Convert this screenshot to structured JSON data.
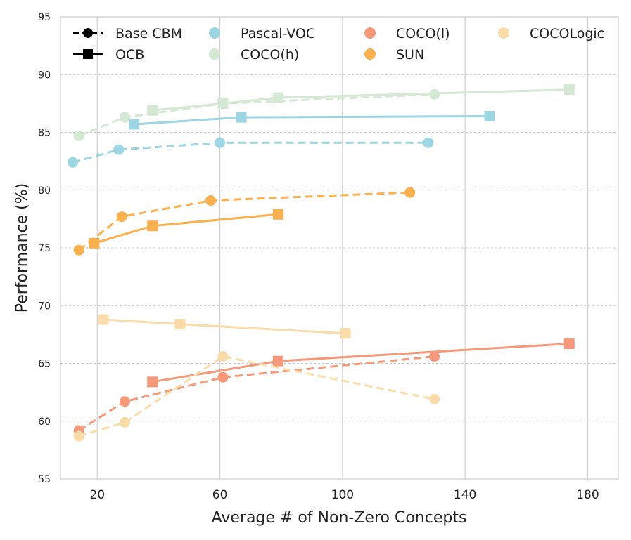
{
  "chart_data": {
    "type": "line",
    "title": "",
    "xlabel": "Average # of Non-Zero Concepts",
    "ylabel": "Performance (%)",
    "xlim": [
      8,
      190
    ],
    "ylim": [
      55,
      95
    ],
    "xticks": [
      20,
      60,
      100,
      140,
      180
    ],
    "yticks": [
      55,
      60,
      65,
      70,
      75,
      80,
      85,
      90,
      95
    ],
    "grid": true,
    "legend": {
      "placement": "top",
      "style_entries": [
        {
          "label": "Base CBM",
          "marker": "circle",
          "dash": true
        },
        {
          "label": "OCB",
          "marker": "square",
          "dash": false
        }
      ],
      "dataset_entries": [
        "Pascal-VOC",
        "COCO(h)",
        "COCO(l)",
        "SUN",
        "COCOLogic"
      ]
    },
    "datasets": [
      {
        "name": "Pascal-VOC",
        "color": "#9dd5e3",
        "base_cbm": {
          "x": [
            12,
            27,
            60,
            128
          ],
          "y": [
            82.4,
            83.5,
            84.1,
            84.1
          ]
        },
        "ocb": {
          "x": [
            32,
            67,
            148
          ],
          "y": [
            85.7,
            86.3,
            86.4
          ]
        }
      },
      {
        "name": "COCO(h)",
        "color": "#d4e8d3",
        "base_cbm": {
          "x": [
            14,
            29,
            61,
            130
          ],
          "y": [
            84.7,
            86.3,
            87.5,
            88.3
          ]
        },
        "ocb": {
          "x": [
            38,
            61,
            79,
            174
          ],
          "y": [
            86.9,
            87.5,
            88.0,
            88.7
          ]
        }
      },
      {
        "name": "COCO(l)",
        "color": "#f5997a",
        "base_cbm": {
          "x": [
            14,
            29,
            61,
            130
          ],
          "y": [
            59.2,
            61.7,
            63.8,
            65.6
          ]
        },
        "ocb": {
          "x": [
            38,
            79,
            174
          ],
          "y": [
            63.4,
            65.2,
            66.7
          ]
        }
      },
      {
        "name": "SUN",
        "color": "#fbb04f",
        "base_cbm": {
          "x": [
            14,
            28,
            57,
            122
          ],
          "y": [
            74.8,
            77.7,
            79.1,
            79.8
          ]
        },
        "ocb": {
          "x": [
            19,
            38,
            79
          ],
          "y": [
            75.4,
            76.9,
            77.9
          ]
        }
      },
      {
        "name": "COCOLogic",
        "color": "#f9dca9",
        "base_cbm": {
          "x": [
            14,
            29,
            61,
            130
          ],
          "y": [
            58.7,
            59.9,
            65.6,
            61.9
          ]
        },
        "ocb": {
          "x": [
            22,
            47,
            101
          ],
          "y": [
            68.8,
            68.4,
            67.6
          ]
        }
      }
    ]
  }
}
